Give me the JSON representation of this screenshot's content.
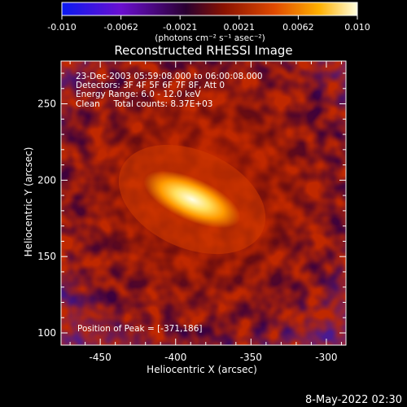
{
  "colorbar": {
    "tick_labels": [
      "-0.010",
      "-0.0062",
      "-0.0021",
      "0.0021",
      "0.0062",
      "0.010"
    ],
    "unit_label": "(photons cm⁻² s⁻¹ asec⁻²)",
    "range": [
      -0.01,
      0.01
    ],
    "colors": [
      "#0a1af0",
      "#6a0fd0",
      "#2a0030",
      "#8a1200",
      "#e04a00",
      "#ffb000",
      "#ffffe0"
    ]
  },
  "title": "Reconstructed RHESSI Image",
  "info": {
    "line1": "23-Dec-2003 05:59:08.000 to 06:00:08.000",
    "line2": "Detectors: 3F 4F 5F 6F 7F 8F, Att 0",
    "line3": "Energy Range: 6.0 - 12.0 keV",
    "line4": "Clean     Total counts: 8.37E+03"
  },
  "peak_label": "Position of Peak = [-371,186]",
  "axes": {
    "xlabel": "Heliocentric X (arcsec)",
    "ylabel": "Heliocentric Y (arcsec)",
    "xticks": [
      "-450",
      "-400",
      "-350",
      "-300"
    ],
    "yticks": [
      "100",
      "150",
      "200",
      "250"
    ]
  },
  "chart_data": {
    "type": "heatmap",
    "title": "Reconstructed RHESSI Image",
    "xlabel": "Heliocentric X (arcsec)",
    "ylabel": "Heliocentric Y (arcsec)",
    "xlim": [
      -476,
      -287
    ],
    "ylim": [
      92,
      278
    ],
    "x_ticks": [
      -450,
      -400,
      -350,
      -300
    ],
    "y_ticks": [
      100,
      150,
      200,
      250
    ],
    "peak": [
      -371,
      186
    ],
    "color_range": [
      -0.01,
      0.01
    ]
  },
  "footer": {
    "timestamp": "8-May-2022 02:30"
  }
}
